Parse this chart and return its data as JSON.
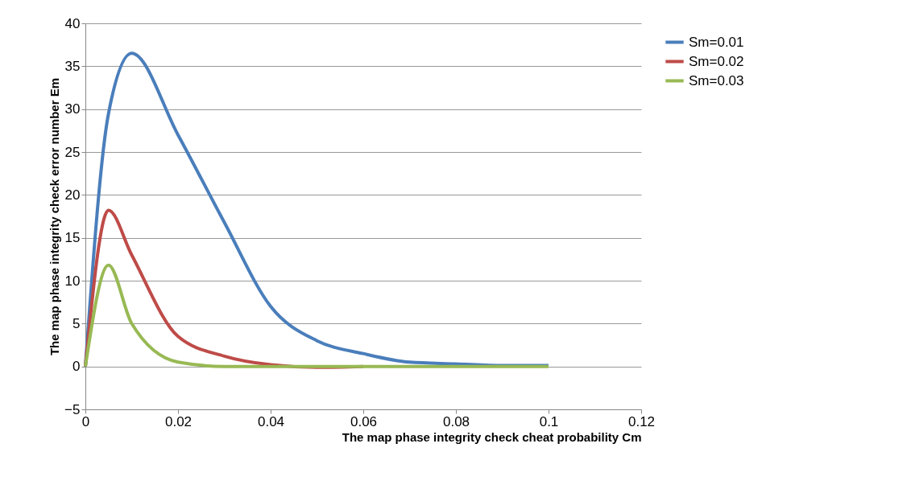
{
  "chart_data": {
    "type": "line",
    "xlabel": "The map phase integrity check cheat probability Cm",
    "ylabel": "The map  phase integrity check error number Em",
    "x": [
      0,
      0.005,
      0.01,
      0.02,
      0.03,
      0.04,
      0.05,
      0.06,
      0.07,
      0.08,
      0.09,
      0.1
    ],
    "series": [
      {
        "name": "Sm=0.01",
        "color": "#4a7ebb",
        "values": [
          0,
          29.5,
          36.5,
          27,
          16.8,
          7,
          3,
          1.5,
          0.5,
          0.3,
          0.1,
          0.1
        ]
      },
      {
        "name": "Sm=0.02",
        "color": "#be4b48",
        "values": [
          0,
          18.2,
          13,
          3.5,
          1.2,
          0.2,
          -0.1,
          0,
          null,
          null,
          null,
          null
        ]
      },
      {
        "name": "Sm=0.03",
        "color": "#98b954",
        "values": [
          0,
          11.8,
          5,
          0.5,
          0,
          0,
          0,
          0,
          0,
          0,
          0,
          0
        ]
      }
    ],
    "xlim": [
      0,
      0.12
    ],
    "xticks": [
      0,
      0.02,
      0.04,
      0.06,
      0.08,
      0.1,
      0.12
    ],
    "ylim": [
      -5,
      40
    ],
    "yticks": [
      -5,
      0,
      5,
      10,
      15,
      20,
      25,
      30,
      35,
      40
    ],
    "grid": "y",
    "legend": "right",
    "marker": "none",
    "line_style": "solid"
  }
}
